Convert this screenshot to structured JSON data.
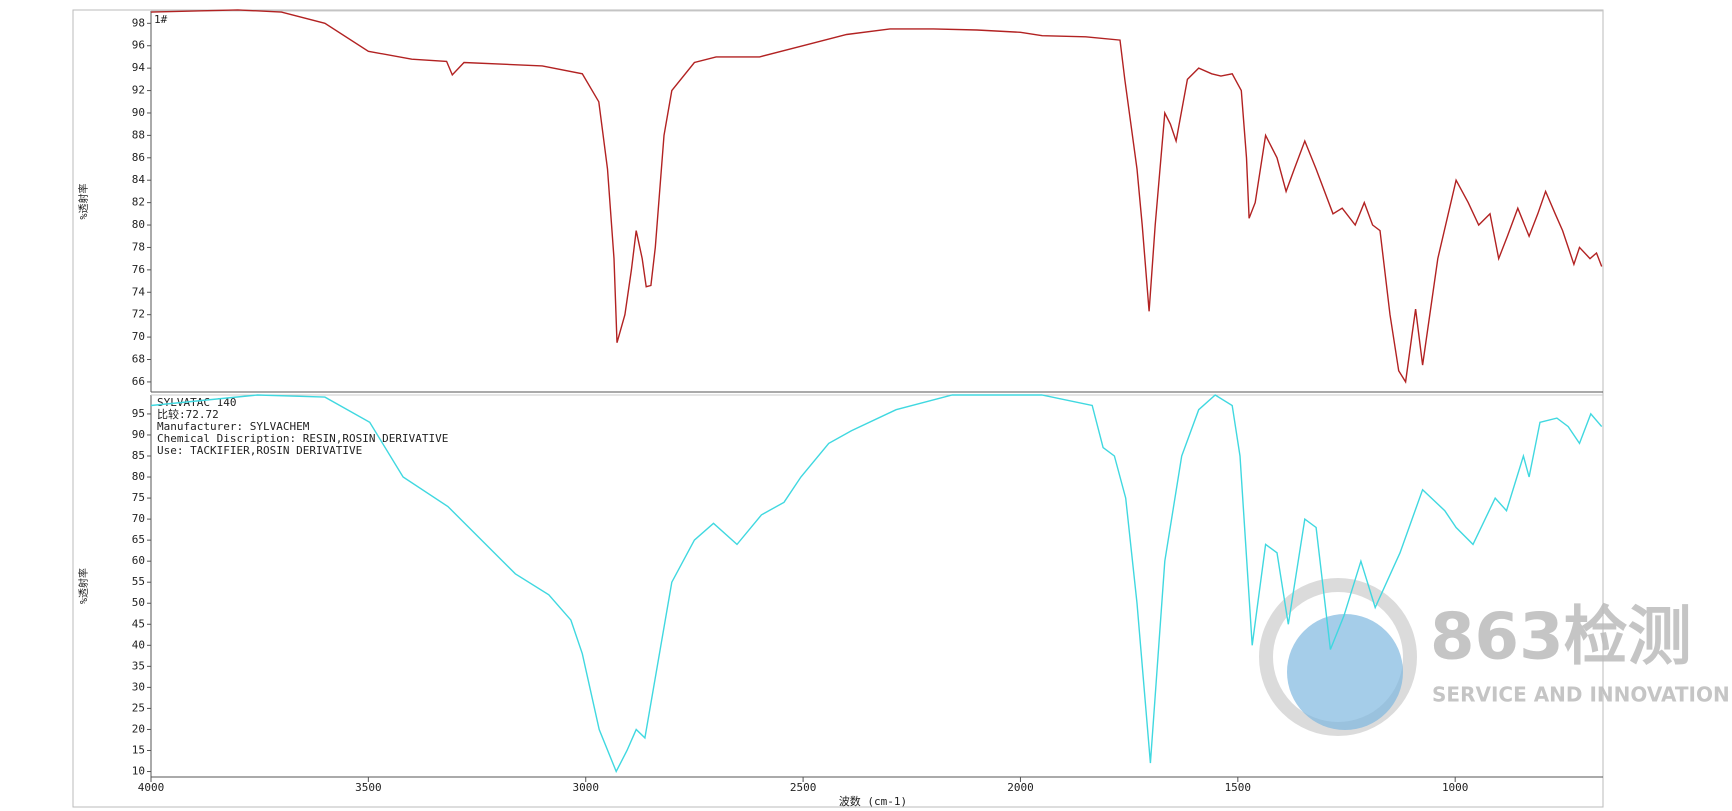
{
  "chart_data": [
    {
      "type": "line",
      "annotation": "1#",
      "ylabel": "%透射率",
      "xlim": [
        4000,
        660
      ],
      "ylim": [
        65.1,
        99.1
      ],
      "yticks": [
        66,
        68,
        70,
        72,
        74,
        76,
        78,
        80,
        82,
        84,
        86,
        88,
        90,
        92,
        94,
        96,
        98
      ],
      "series": [
        {
          "color": "#b22222",
          "x": [
            4000,
            3800,
            3700,
            3600,
            3500,
            3400,
            3320,
            3307,
            3280,
            3100,
            3008,
            2970,
            2950,
            2935,
            2928,
            2910,
            2895,
            2884,
            2870,
            2861,
            2850,
            2840,
            2820,
            2802,
            2750,
            2700,
            2600,
            2500,
            2400,
            2300,
            2200,
            2100,
            2000,
            1950,
            1850,
            1771,
            1760,
            1732,
            1720,
            1704,
            1690,
            1668,
            1655,
            1642,
            1616,
            1590,
            1560,
            1539,
            1513,
            1492,
            1480,
            1474,
            1460,
            1436,
            1410,
            1389,
            1370,
            1346,
            1320,
            1281,
            1260,
            1230,
            1209,
            1190,
            1173,
            1150,
            1130,
            1114,
            1100,
            1091,
            1075,
            1040,
            998,
            970,
            946,
            920,
            900,
            880,
            856,
            830,
            810,
            792,
            770,
            753,
            727,
            714,
            690,
            675,
            663
          ],
          "values": [
            99,
            99.2,
            99,
            98,
            95.5,
            94.8,
            94.6,
            93.4,
            94.5,
            94.2,
            93.5,
            91,
            85,
            77,
            69.5,
            72,
            76,
            79.5,
            77,
            74.5,
            74.6,
            78,
            88,
            92,
            94.5,
            95,
            95,
            96,
            97,
            97.5,
            97.5,
            97.4,
            97.2,
            96.9,
            96.8,
            96.5,
            93,
            85,
            80,
            72.3,
            80,
            90,
            89,
            87.5,
            93,
            94,
            93.5,
            93.3,
            93.5,
            92,
            86,
            80.6,
            82,
            88,
            86,
            83,
            85,
            87.5,
            85,
            81,
            81.5,
            80,
            82,
            80,
            79.5,
            72,
            67,
            66,
            70,
            72.5,
            67.5,
            77,
            84,
            82,
            80,
            81,
            77,
            79,
            81.5,
            79,
            81,
            83,
            81,
            79.5,
            76.5,
            78,
            77,
            77.5,
            76.3
          ]
        }
      ]
    },
    {
      "type": "line",
      "ylabel": "%透射率",
      "xlabel": "波数 (cm-1)",
      "annotations": [
        "SYLVATAC 140",
        "比较:72.72",
        "Manufacturer:  SYLVACHEM",
        "Chemical Discription:  RESIN,ROSIN DERIVATIVE",
        "Use:  TACKIFIER,ROSIN DERIVATIVE"
      ],
      "watermark": [
        "863检测",
        "SERVICE AND INNOVATION"
      ],
      "xlim": [
        4000,
        660
      ],
      "ylim": [
        8.7,
        99.5
      ],
      "xticks": [
        4000,
        3500,
        3000,
        2500,
        2000,
        1500,
        1000
      ],
      "yticks": [
        10,
        15,
        20,
        25,
        30,
        35,
        40,
        45,
        50,
        55,
        60,
        65,
        70,
        75,
        80,
        85,
        90,
        95
      ],
      "series": [
        {
          "color": "#40d8e0",
          "x": [
            4000,
            3755,
            3600,
            3497,
            3420,
            3317,
            3162,
            3085,
            3034,
            3008,
            2969,
            2930,
            2905,
            2884,
            2864,
            2827,
            2802,
            2750,
            2706,
            2652,
            2596,
            2544,
            2505,
            2441,
            2389,
            2286,
            2157,
            1951,
            1835,
            1810,
            1784,
            1758,
            1732,
            1701,
            1668,
            1629,
            1590,
            1552,
            1513,
            1495,
            1467,
            1436,
            1410,
            1384,
            1346,
            1320,
            1287,
            1256,
            1217,
            1184,
            1127,
            1075,
            1024,
            998,
            959,
            908,
            882,
            843,
            830,
            805,
            766,
            740,
            714,
            688,
            663
          ],
          "values": [
            97,
            99.5,
            99,
            93,
            80,
            73,
            57,
            52,
            46,
            38,
            20,
            10,
            15,
            20,
            18,
            40,
            55,
            65,
            69,
            64,
            71,
            74,
            80,
            88,
            91,
            96,
            99.5,
            99.5,
            97,
            87,
            85,
            75,
            50,
            12,
            60,
            85,
            96,
            99.5,
            97,
            85,
            40,
            64,
            62,
            45,
            70,
            68,
            39,
            47,
            60,
            49,
            62,
            77,
            72,
            68,
            64,
            75,
            72,
            85,
            80,
            93,
            94,
            92,
            88,
            95,
            92
          ]
        }
      ]
    }
  ]
}
